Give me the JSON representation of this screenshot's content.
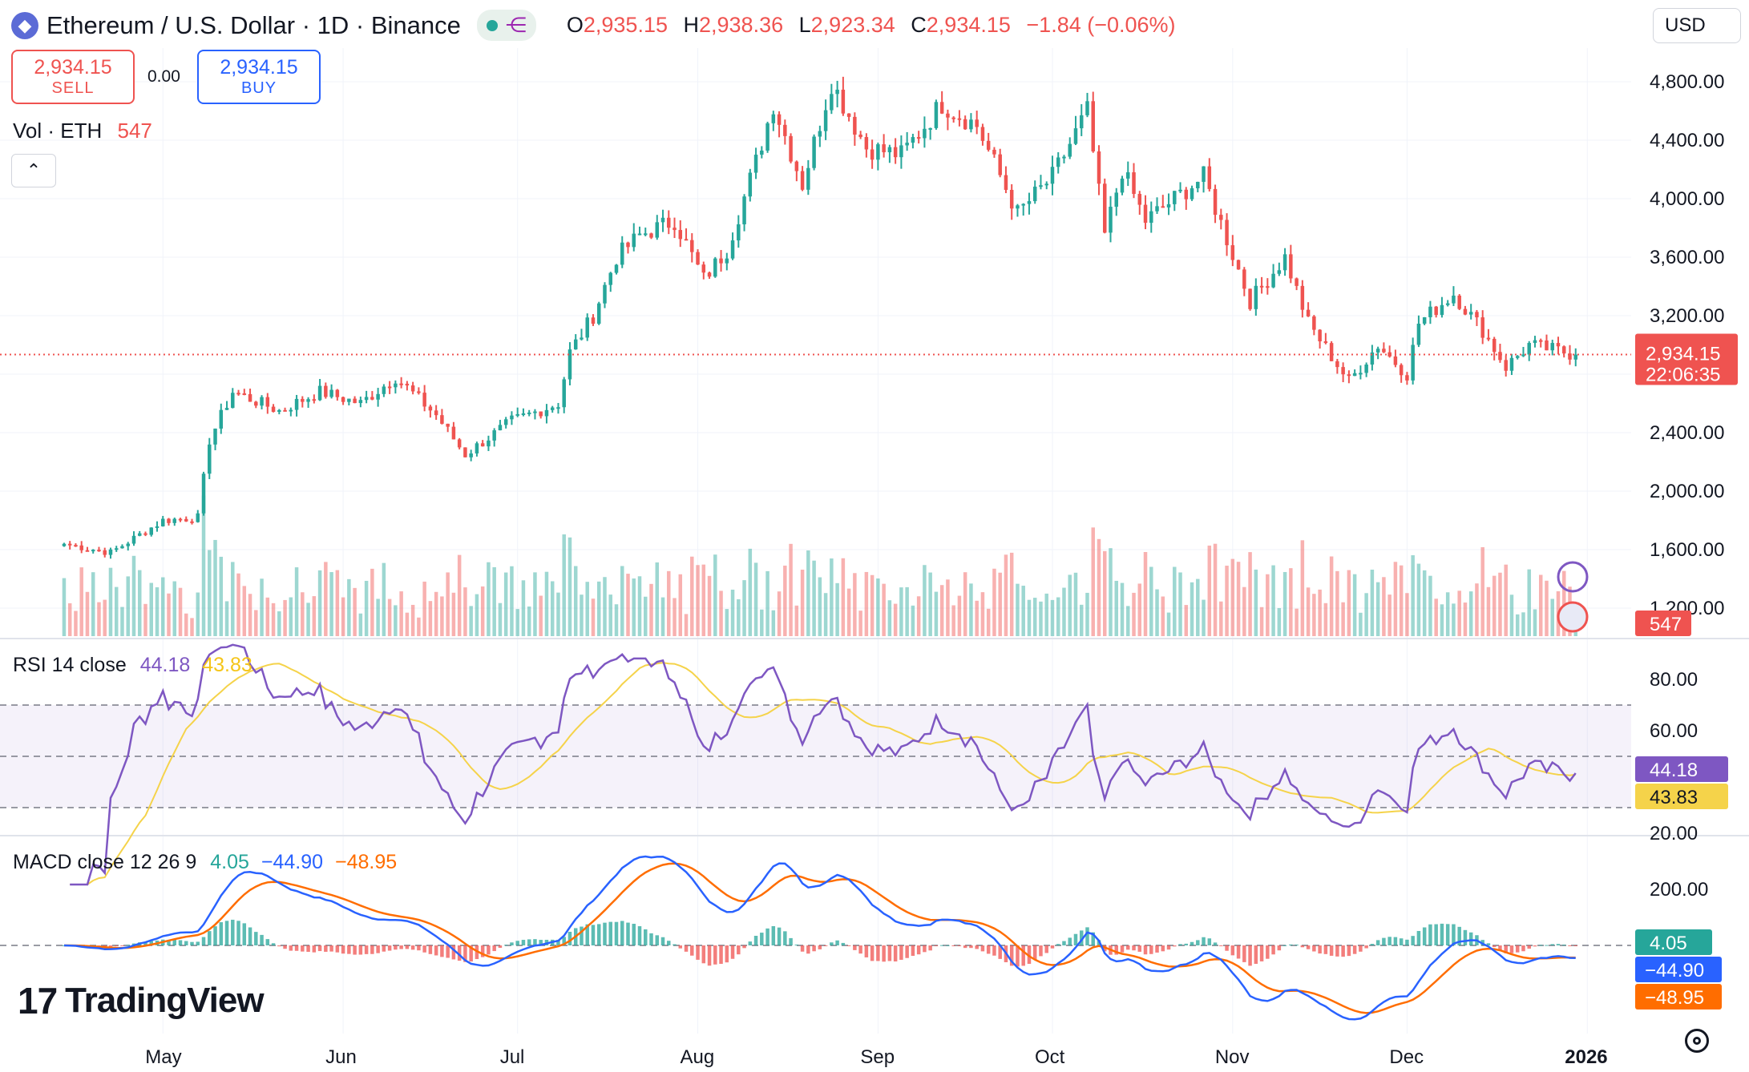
{
  "header": {
    "symbol_title": "Ethereum / U.S. Dollar · 1D · Binance",
    "ohlc": {
      "o_label": "O",
      "o": "2,935.15",
      "h_label": "H",
      "h": "2,938.36",
      "l_label": "L",
      "l": "2,923.34",
      "c_label": "C",
      "c": "2,934.15",
      "change": "−1.84 (−0.06%)"
    }
  },
  "trade": {
    "sell_price": "2,934.15",
    "sell_label": "SELL",
    "spread": "0.00",
    "buy_price": "2,934.15",
    "buy_label": "BUY"
  },
  "volume_legend": {
    "label": "Vol · ETH",
    "value": "547"
  },
  "currency": {
    "selected": "USD"
  },
  "price_badge": {
    "price": "2,934.15",
    "countdown": "22:06:35"
  },
  "volume_badge": "547",
  "rsi_legend": {
    "label": "RSI 14 close",
    "rsi": "44.18",
    "ma": "43.83"
  },
  "macd_legend": {
    "label": "MACD close 12 26 9",
    "hist": "4.05",
    "macd": "−44.90",
    "signal": "−48.95"
  },
  "rsi_badges": {
    "rsi": "44.18",
    "ma": "43.83"
  },
  "macd_badges": {
    "hist": "4.05",
    "macd": "−44.90",
    "signal": "−48.95"
  },
  "branding": "TradingView",
  "colors": {
    "up": "#26a69a",
    "down": "#ef5350",
    "rsi": "#7e57c2",
    "rsi_ma": "#f5d34a",
    "macd": "#2962ff",
    "signal": "#ff6d00"
  },
  "chart_data": [
    {
      "type": "candlestick",
      "title": "Ethereum / U.S. Dollar · 1D · Binance",
      "x_tick_labels": [
        "May",
        "Jun",
        "Jul",
        "Aug",
        "Sep",
        "Oct",
        "Nov",
        "Dec",
        "2026"
      ],
      "y_tick_labels": [
        "4,800.00",
        "4,400.00",
        "4,000.00",
        "3,600.00",
        "3,200.00",
        "2,800.00",
        "2,400.00",
        "2,000.00",
        "1,600.00",
        "1,200.00"
      ],
      "y_ticks": [
        4800,
        4400,
        4000,
        3600,
        3200,
        2800,
        2400,
        2000,
        1600,
        1200
      ],
      "last_price": 2934.15,
      "close_keypoints": [
        {
          "date": "2025-04-14",
          "close": 1640
        },
        {
          "date": "2025-04-22",
          "close": 1580
        },
        {
          "date": "2025-05-01",
          "close": 1800
        },
        {
          "date": "2025-05-07",
          "close": 1820
        },
        {
          "date": "2025-05-09",
          "close": 2350
        },
        {
          "date": "2025-05-13",
          "close": 2680
        },
        {
          "date": "2025-05-21",
          "close": 2550
        },
        {
          "date": "2025-05-28",
          "close": 2680
        },
        {
          "date": "2025-06-04",
          "close": 2600
        },
        {
          "date": "2025-06-10",
          "close": 2780
        },
        {
          "date": "2025-06-17",
          "close": 2520
        },
        {
          "date": "2025-06-22",
          "close": 2250
        },
        {
          "date": "2025-06-30",
          "close": 2480
        },
        {
          "date": "2025-07-08",
          "close": 2600
        },
        {
          "date": "2025-07-10",
          "close": 2950
        },
        {
          "date": "2025-07-14",
          "close": 3200
        },
        {
          "date": "2025-07-18",
          "close": 3600
        },
        {
          "date": "2025-07-22",
          "close": 3750
        },
        {
          "date": "2025-07-28",
          "close": 3850
        },
        {
          "date": "2025-08-02",
          "close": 3450
        },
        {
          "date": "2025-08-06",
          "close": 3650
        },
        {
          "date": "2025-08-11",
          "close": 4250
        },
        {
          "date": "2025-08-14",
          "close": 4650
        },
        {
          "date": "2025-08-19",
          "close": 4100
        },
        {
          "date": "2025-08-24",
          "close": 4800
        },
        {
          "date": "2025-08-30",
          "close": 4350
        },
        {
          "date": "2025-09-05",
          "close": 4300
        },
        {
          "date": "2025-09-12",
          "close": 4650
        },
        {
          "date": "2025-09-18",
          "close": 4500
        },
        {
          "date": "2025-09-25",
          "close": 3900
        },
        {
          "date": "2025-10-01",
          "close": 4150
        },
        {
          "date": "2025-10-07",
          "close": 4600
        },
        {
          "date": "2025-10-10",
          "close": 3750
        },
        {
          "date": "2025-10-13",
          "close": 4200
        },
        {
          "date": "2025-10-17",
          "close": 3850
        },
        {
          "date": "2025-10-27",
          "close": 4150
        },
        {
          "date": "2025-11-04",
          "close": 3300
        },
        {
          "date": "2025-11-10",
          "close": 3600
        },
        {
          "date": "2025-11-14",
          "close": 3150
        },
        {
          "date": "2025-11-21",
          "close": 2750
        },
        {
          "date": "2025-11-26",
          "close": 3000
        },
        {
          "date": "2025-12-01",
          "close": 2800
        },
        {
          "date": "2025-12-03",
          "close": 3150
        },
        {
          "date": "2025-12-09",
          "close": 3350
        },
        {
          "date": "2025-12-14",
          "close": 3100
        },
        {
          "date": "2025-12-18",
          "close": 2850
        },
        {
          "date": "2025-12-22",
          "close": 3000
        },
        {
          "date": "2025-12-30",
          "close": 2934.15
        }
      ]
    },
    {
      "type": "bar",
      "title": "Vol · ETH",
      "last_value": 547
    },
    {
      "type": "line",
      "title": "RSI 14 close",
      "y_tick_labels": [
        "80.00",
        "60.00",
        "20.00"
      ],
      "band": [
        30,
        70
      ],
      "series": [
        {
          "name": "RSI",
          "last": 44.18
        },
        {
          "name": "RSI MA",
          "last": 43.83
        }
      ]
    },
    {
      "type": "line",
      "title": "MACD close 12 26 9",
      "y_tick_labels": [
        "200.00"
      ],
      "series": [
        {
          "name": "Histogram",
          "last": 4.05
        },
        {
          "name": "MACD",
          "last": -44.9
        },
        {
          "name": "Signal",
          "last": -48.95
        }
      ]
    }
  ]
}
